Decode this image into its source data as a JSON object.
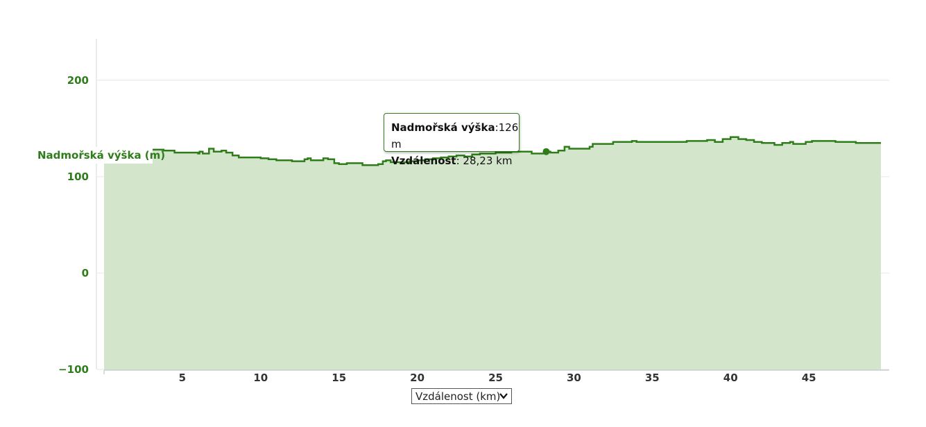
{
  "chart_data": {
    "type": "area",
    "ylabel": "Nadmořská výška (m)",
    "ylim": [
      -100,
      243
    ],
    "yticks": [
      {
        "value": 200,
        "label": "200"
      },
      {
        "value": 100,
        "label": "100"
      },
      {
        "value": 0,
        "label": "0"
      },
      {
        "value": -100,
        "label": "−100"
      }
    ],
    "xlim": [
      0,
      49.6
    ],
    "xticks": [
      {
        "value": 5,
        "label": "5"
      },
      {
        "value": 10,
        "label": "10"
      },
      {
        "value": 15,
        "label": "15"
      },
      {
        "value": 20,
        "label": "20"
      },
      {
        "value": 25,
        "label": "25"
      },
      {
        "value": 30,
        "label": "30"
      },
      {
        "value": 35,
        "label": "35"
      },
      {
        "value": 40,
        "label": "40"
      },
      {
        "value": 45,
        "label": "45"
      }
    ],
    "grid": true,
    "series": [
      {
        "values": [
          [
            0.0,
            126
          ],
          [
            3.0,
            128
          ],
          [
            3.8,
            127
          ],
          [
            4.5,
            125
          ],
          [
            6.0,
            124
          ],
          [
            6.1,
            126
          ],
          [
            6.3,
            124
          ],
          [
            6.7,
            129
          ],
          [
            7.0,
            126
          ],
          [
            7.5,
            127
          ],
          [
            7.8,
            125
          ],
          [
            8.2,
            122
          ],
          [
            8.6,
            120
          ],
          [
            9.0,
            120
          ],
          [
            10.0,
            119
          ],
          [
            10.5,
            118
          ],
          [
            11.0,
            117
          ],
          [
            12.0,
            116
          ],
          [
            12.5,
            116
          ],
          [
            12.8,
            118
          ],
          [
            13.0,
            119
          ],
          [
            13.2,
            117
          ],
          [
            13.5,
            117
          ],
          [
            14.0,
            119
          ],
          [
            14.3,
            118
          ],
          [
            14.7,
            114
          ],
          [
            15.0,
            113
          ],
          [
            15.5,
            114
          ],
          [
            16.0,
            114
          ],
          [
            16.5,
            112
          ],
          [
            17.0,
            112
          ],
          [
            17.5,
            113
          ],
          [
            17.8,
            116
          ],
          [
            18.0,
            117
          ],
          [
            18.3,
            115
          ],
          [
            19.0,
            115
          ],
          [
            19.5,
            116
          ],
          [
            20.0,
            117
          ],
          [
            20.5,
            118
          ],
          [
            21.0,
            119
          ],
          [
            21.5,
            120
          ],
          [
            22.0,
            121
          ],
          [
            22.5,
            122
          ],
          [
            23.0,
            121
          ],
          [
            23.5,
            123
          ],
          [
            24.0,
            124
          ],
          [
            25.0,
            125
          ],
          [
            26.0,
            126
          ],
          [
            27.0,
            126
          ],
          [
            27.3,
            124
          ],
          [
            28.23,
            126
          ],
          [
            28.5,
            125
          ],
          [
            29.0,
            127
          ],
          [
            29.4,
            131
          ],
          [
            29.7,
            129
          ],
          [
            30.5,
            129
          ],
          [
            31.0,
            131
          ],
          [
            31.2,
            134
          ],
          [
            32.0,
            134
          ],
          [
            32.5,
            136
          ],
          [
            33.0,
            136
          ],
          [
            33.7,
            137
          ],
          [
            34.0,
            136
          ],
          [
            36.0,
            136
          ],
          [
            37.0,
            136
          ],
          [
            37.2,
            137
          ],
          [
            38.0,
            137
          ],
          [
            38.5,
            138
          ],
          [
            39.0,
            136
          ],
          [
            39.5,
            139
          ],
          [
            40.0,
            141
          ],
          [
            40.5,
            139
          ],
          [
            41.0,
            138
          ],
          [
            41.5,
            136
          ],
          [
            42.0,
            135
          ],
          [
            42.8,
            133
          ],
          [
            43.3,
            135
          ],
          [
            43.8,
            136
          ],
          [
            44.0,
            134
          ],
          [
            44.8,
            136
          ],
          [
            45.2,
            137
          ],
          [
            46.0,
            137
          ],
          [
            46.7,
            136
          ],
          [
            47.5,
            136
          ],
          [
            48.0,
            135
          ],
          [
            48.6,
            135
          ]
        ]
      }
    ],
    "highlight": {
      "x": 28.23,
      "y": 126
    },
    "tooltip": {
      "elev_label": "Nadmořská výška",
      "elev_value": ":126 m",
      "dist_label": "Vzdálenost",
      "dist_value": ": 28,23 km"
    },
    "x_axis_selector": "Vzdálenost (km)",
    "colors": {
      "line": "#2e7d1a",
      "area": "#d3e6cb",
      "axis_text": "#2e7d1a",
      "grid": "#e6e6e6"
    }
  }
}
